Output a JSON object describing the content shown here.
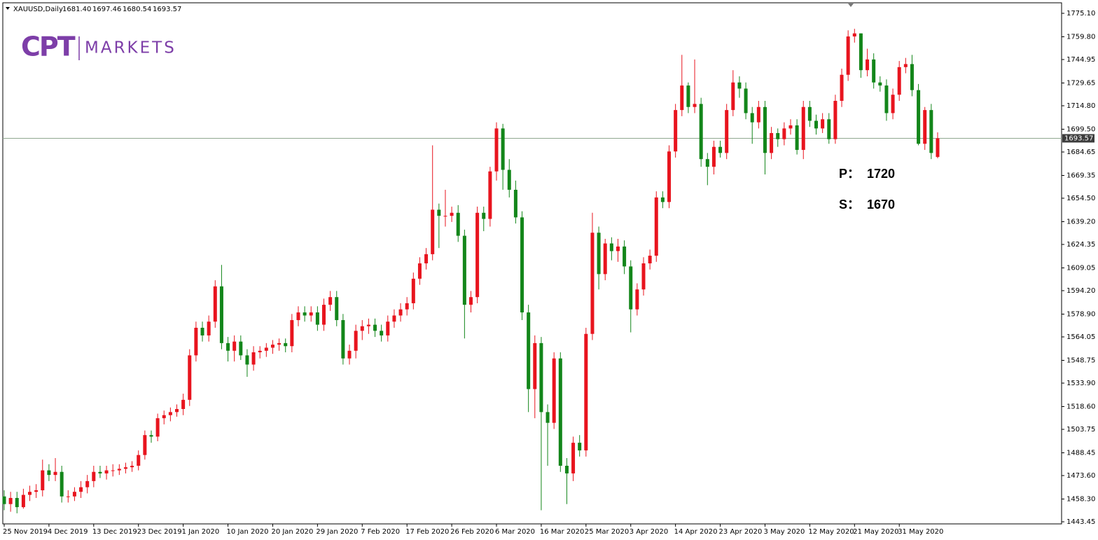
{
  "header": {
    "symbol": "XAUUSD,Daily",
    "ohlc": [
      "1681.40",
      "1697.46",
      "1680.54",
      "1693.57"
    ]
  },
  "logo": {
    "mark": "CPT",
    "text": "MARKETS"
  },
  "annotations": [
    {
      "label": "P：",
      "value": "1720"
    },
    {
      "label": "S：",
      "value": "1670"
    }
  ],
  "chart_data": {
    "type": "candlestick",
    "x": [
      "25 Nov 2019",
      null,
      null,
      null,
      null,
      null,
      null,
      "4 Dec 2019",
      null,
      null,
      null,
      null,
      null,
      null,
      "13 Dec 2019",
      null,
      null,
      null,
      null,
      null,
      null,
      "23 Dec 2019",
      null,
      null,
      null,
      null,
      null,
      null,
      "1 Jan 2020",
      null,
      null,
      null,
      null,
      null,
      null,
      "10 Jan 2020",
      null,
      null,
      null,
      null,
      null,
      null,
      "20 Jan 2020",
      null,
      null,
      null,
      null,
      null,
      null,
      "29 Jan 2020",
      null,
      null,
      null,
      null,
      null,
      null,
      "7 Feb 2020",
      null,
      null,
      null,
      null,
      null,
      null,
      "17 Feb 2020",
      null,
      null,
      null,
      null,
      null,
      null,
      "26 Feb 2020",
      null,
      null,
      null,
      null,
      null,
      null,
      "6 Mar 2020",
      null,
      null,
      null,
      null,
      null,
      null,
      "16 Mar 2020",
      null,
      null,
      null,
      null,
      null,
      null,
      "25 Mar 2020",
      null,
      null,
      null,
      null,
      null,
      null,
      "3 Apr 2020",
      null,
      null,
      null,
      null,
      null,
      null,
      "14 Apr 2020",
      null,
      null,
      null,
      null,
      null,
      null,
      "23 Apr 2020",
      null,
      null,
      null,
      null,
      null,
      null,
      "3 May 2020",
      null,
      null,
      null,
      null,
      null,
      null,
      "12 May 2020",
      null,
      null,
      null,
      null,
      null,
      null,
      "21 May 2020",
      null,
      null,
      null,
      null,
      null,
      null,
      "31 May 2020",
      null,
      null,
      null,
      null,
      null,
      null
    ],
    "open": [
      1460,
      1455,
      1459,
      1453,
      1461,
      1463,
      1464,
      1477,
      1474,
      1476,
      1460,
      1460,
      1463,
      1466,
      1470,
      1476,
      1475,
      1477,
      1477,
      1478,
      1479,
      1480,
      1487,
      1500,
      1499,
      1511,
      1513,
      1515,
      1517,
      1523,
      1552,
      1570,
      1565,
      1574,
      1597,
      1560,
      1555,
      1561,
      1552,
      1546,
      1554,
      1555,
      1557,
      1559,
      1560,
      1558,
      1575,
      1580,
      1578,
      1580,
      1572,
      1585,
      1590,
      1575,
      1550,
      1555,
      1568,
      1571,
      1572,
      1568,
      1565,
      1574,
      1578,
      1582,
      1586,
      1602,
      1612,
      1618,
      1647,
      1643,
      1643,
      1645,
      1630,
      1585,
      1590,
      1645,
      1641,
      1672,
      1700,
      1673,
      1660,
      1642,
      1580,
      1530,
      1560,
      1515,
      1508,
      1550,
      1480,
      1475,
      1495,
      1490,
      1566,
      1632,
      1605,
      1625,
      1620,
      1623,
      1610,
      1582,
      1595,
      1612,
      1617,
      1655,
      1652,
      1685,
      1712,
      1728,
      1714,
      1716,
      1680,
      1675,
      1688,
      1684,
      1712,
      1730,
      1726,
      1710,
      1704,
      1714,
      1684,
      1697,
      1693,
      1700,
      1702,
      1686,
      1714,
      1705,
      1700,
      1706,
      1693,
      1718,
      1735,
      1760,
      1762,
      1738,
      1745,
      1730,
      1728,
      1710,
      1722,
      1740,
      1742,
      1725,
      1690,
      1712,
      1681.4
    ],
    "high": [
      1464,
      1463,
      1463,
      1465,
      1467,
      1468,
      1484,
      1481,
      1485,
      1480,
      1464,
      1466,
      1470,
      1474,
      1480,
      1480,
      1480,
      1481,
      1481,
      1482,
      1483,
      1490,
      1503,
      1503,
      1514,
      1516,
      1518,
      1520,
      1527,
      1556,
      1574,
      1574,
      1578,
      1601,
      1611,
      1564,
      1565,
      1565,
      1556,
      1558,
      1558,
      1560,
      1562,
      1563,
      1563,
      1579,
      1584,
      1584,
      1584,
      1584,
      1589,
      1594,
      1594,
      1579,
      1559,
      1572,
      1575,
      1576,
      1576,
      1572,
      1578,
      1582,
      1586,
      1590,
      1606,
      1616,
      1622,
      1689,
      1651,
      1660,
      1649,
      1650,
      1634,
      1594,
      1649,
      1649,
      1675,
      1704,
      1703,
      1680,
      1666,
      1646,
      1585,
      1565,
      1564,
      1520,
      1554,
      1554,
      1485,
      1499,
      1500,
      1570,
      1645,
      1636,
      1628,
      1629,
      1628,
      1627,
      1614,
      1599,
      1616,
      1621,
      1659,
      1659,
      1689,
      1716,
      1748,
      1730,
      1745,
      1720,
      1684,
      1692,
      1692,
      1716,
      1738,
      1734,
      1730,
      1714,
      1718,
      1718,
      1701,
      1700,
      1704,
      1706,
      1706,
      1718,
      1718,
      1709,
      1710,
      1710,
      1722,
      1739,
      1764,
      1765,
      1762,
      1752,
      1749,
      1734,
      1732,
      1726,
      1744,
      1746,
      1748,
      1729,
      1714,
      1716,
      1697.46
    ],
    "low": [
      1451,
      1450,
      1449,
      1452,
      1457,
      1459,
      1460,
      1470,
      1470,
      1456,
      1456,
      1457,
      1459,
      1462,
      1466,
      1472,
      1471,
      1473,
      1474,
      1475,
      1476,
      1477,
      1484,
      1495,
      1496,
      1507,
      1509,
      1512,
      1513,
      1519,
      1548,
      1561,
      1561,
      1570,
      1556,
      1548,
      1548,
      1549,
      1538,
      1542,
      1550,
      1551,
      1553,
      1555,
      1554,
      1554,
      1571,
      1574,
      1574,
      1568,
      1568,
      1581,
      1571,
      1546,
      1546,
      1550,
      1562,
      1566,
      1564,
      1561,
      1561,
      1570,
      1574,
      1578,
      1582,
      1598,
      1608,
      1614,
      1622,
      1636,
      1639,
      1626,
      1563,
      1580,
      1586,
      1633,
      1636,
      1666,
      1660,
      1655,
      1638,
      1575,
      1515,
      1511,
      1451,
      1480,
      1504,
      1476,
      1455,
      1470,
      1486,
      1486,
      1562,
      1595,
      1601,
      1614,
      1613,
      1605,
      1567,
      1578,
      1591,
      1608,
      1613,
      1648,
      1648,
      1681,
      1708,
      1710,
      1710,
      1675,
      1663,
      1670,
      1681,
      1680,
      1708,
      1720,
      1706,
      1690,
      1700,
      1670,
      1680,
      1688,
      1689,
      1696,
      1683,
      1680,
      1701,
      1696,
      1697,
      1690,
      1690,
      1714,
      1731,
      1756,
      1733,
      1734,
      1726,
      1724,
      1705,
      1706,
      1718,
      1736,
      1721,
      1689,
      1686,
      1680,
      1680.54
    ],
    "close": [
      1455,
      1459,
      1453,
      1461,
      1463,
      1464,
      1477,
      1474,
      1476,
      1460,
      1460,
      1463,
      1466,
      1470,
      1476,
      1475,
      1477,
      1477,
      1478,
      1479,
      1480,
      1487,
      1500,
      1499,
      1511,
      1513,
      1515,
      1517,
      1523,
      1552,
      1570,
      1565,
      1574,
      1597,
      1560,
      1555,
      1561,
      1552,
      1546,
      1554,
      1555,
      1557,
      1559,
      1560,
      1558,
      1575,
      1580,
      1578,
      1580,
      1572,
      1585,
      1590,
      1575,
      1550,
      1555,
      1568,
      1571,
      1572,
      1568,
      1565,
      1574,
      1578,
      1582,
      1586,
      1602,
      1612,
      1618,
      1647,
      1643,
      1643,
      1645,
      1630,
      1585,
      1590,
      1645,
      1641,
      1672,
      1700,
      1673,
      1660,
      1642,
      1580,
      1530,
      1560,
      1515,
      1508,
      1550,
      1480,
      1475,
      1495,
      1490,
      1566,
      1632,
      1605,
      1625,
      1620,
      1623,
      1610,
      1582,
      1595,
      1612,
      1617,
      1655,
      1652,
      1685,
      1712,
      1728,
      1714,
      1716,
      1680,
      1675,
      1688,
      1684,
      1712,
      1730,
      1726,
      1710,
      1704,
      1714,
      1684,
      1697,
      1693,
      1700,
      1702,
      1686,
      1714,
      1705,
      1700,
      1706,
      1693,
      1718,
      1735,
      1760,
      1762,
      1738,
      1745,
      1730,
      1728,
      1710,
      1722,
      1740,
      1742,
      1725,
      1690,
      1712,
      1684,
      1693.57
    ],
    "up_color": "#e8141e",
    "down_color": "#13861a",
    "ylim": [
      1442.08,
      1781.95
    ],
    "yticks": [
      {
        "value": 1775.1,
        "label": "1775.10"
      },
      {
        "value": 1759.8,
        "label": "1759.80"
      },
      {
        "value": 1744.95,
        "label": "1744.95"
      },
      {
        "value": 1729.65,
        "label": "1729.65"
      },
      {
        "value": 1714.8,
        "label": "1714.80"
      },
      {
        "value": 1699.5,
        "label": "1699.50"
      },
      {
        "value": 1684.65,
        "label": "1684.65"
      },
      {
        "value": 1669.35,
        "label": "1669.35"
      },
      {
        "value": 1654.5,
        "label": "1654.50"
      },
      {
        "value": 1639.2,
        "label": "1639.20"
      },
      {
        "value": 1624.35,
        "label": "1624.35"
      },
      {
        "value": 1609.05,
        "label": "1609.05"
      },
      {
        "value": 1594.2,
        "label": "1594.20"
      },
      {
        "value": 1578.9,
        "label": "1578.90"
      },
      {
        "value": 1564.05,
        "label": "1564.05"
      },
      {
        "value": 1548.75,
        "label": "1548.75"
      },
      {
        "value": 1533.9,
        "label": "1533.90"
      },
      {
        "value": 1518.6,
        "label": "1518.60"
      },
      {
        "value": 1503.75,
        "label": "1503.75"
      },
      {
        "value": 1488.45,
        "label": "1488.45"
      },
      {
        "value": 1473.6,
        "label": "1473.60"
      },
      {
        "value": 1458.3,
        "label": "1458.30"
      },
      {
        "value": 1443.45,
        "label": "1443.45"
      }
    ],
    "current_price": {
      "value": 1693.57,
      "label": "1693.57"
    },
    "price_line_color": "#8fa88f"
  }
}
